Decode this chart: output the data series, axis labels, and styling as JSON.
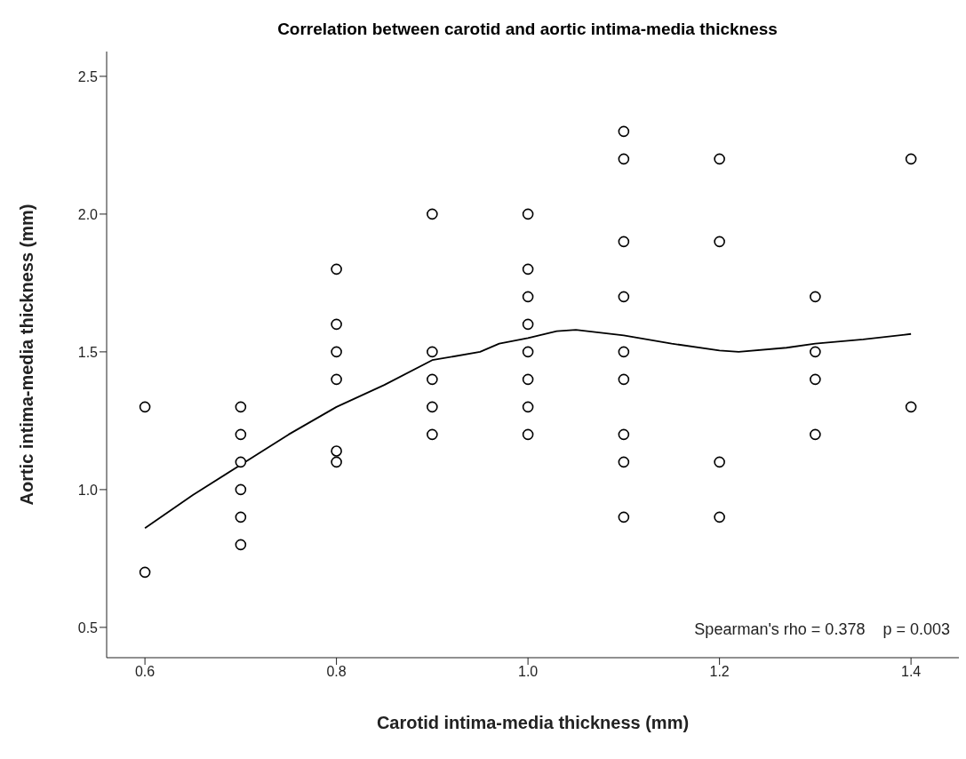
{
  "chart_data": {
    "type": "scatter",
    "title": "Correlation between carotid and aortic intima-media thickness",
    "xlabel": "Carotid intima-media thickness (mm)",
    "ylabel": "Aortic intima-media thickness (mm)",
    "xlim": [
      0.56,
      1.45
    ],
    "xticks": [
      {
        "value": 0.6,
        "label": "0.6"
      },
      {
        "value": 0.8,
        "label": "0.8"
      },
      {
        "value": 1.0,
        "label": "1.0"
      },
      {
        "value": 1.2,
        "label": "1.2"
      },
      {
        "value": 1.4,
        "label": "1.4"
      }
    ],
    "ylim": [
      0.39,
      2.59
    ],
    "yticks": [
      {
        "value": 0.5,
        "label": "0.5"
      },
      {
        "value": 1.0,
        "label": "1.0"
      },
      {
        "value": 1.5,
        "label": "1.5"
      },
      {
        "value": 2.0,
        "label": "2.0"
      },
      {
        "value": 2.5,
        "label": "2.5"
      }
    ],
    "marker": "circle",
    "series": [
      {
        "color": "#000000",
        "x": [
          0.6,
          0.6,
          0.7,
          0.7,
          0.7,
          0.7,
          0.7,
          0.7,
          0.8,
          0.8,
          0.8,
          0.8,
          0.8,
          0.8,
          0.9,
          0.9,
          0.9,
          0.9,
          0.9,
          1.0,
          1.0,
          1.0,
          1.0,
          1.0,
          1.0,
          1.0,
          1.0,
          1.1,
          1.1,
          1.1,
          1.1,
          1.1,
          1.1,
          1.1,
          1.1,
          1.1,
          1.2,
          1.2,
          1.2,
          1.2,
          1.3,
          1.3,
          1.3,
          1.3,
          1.4,
          1.4
        ],
        "values": [
          1.3,
          0.7,
          1.3,
          1.2,
          1.1,
          1.0,
          0.9,
          0.8,
          1.8,
          1.6,
          1.5,
          1.4,
          1.14,
          1.1,
          2.0,
          1.5,
          1.4,
          1.3,
          1.2,
          2.0,
          1.8,
          1.7,
          1.6,
          1.5,
          1.4,
          1.3,
          1.2,
          2.3,
          2.2,
          1.9,
          1.7,
          1.5,
          1.4,
          1.2,
          1.1,
          0.9,
          2.2,
          1.9,
          1.1,
          0.9,
          1.7,
          1.5,
          1.4,
          1.2,
          2.2,
          1.3
        ]
      },
      {
        "type": "line",
        "color": "#000000",
        "line_style": "solid",
        "marker": "none",
        "x": [
          0.6,
          0.65,
          0.7,
          0.75,
          0.8,
          0.85,
          0.9,
          0.95,
          0.97,
          1.0,
          1.03,
          1.05,
          1.1,
          1.15,
          1.2,
          1.22,
          1.27,
          1.3,
          1.35,
          1.4
        ],
        "values": [
          0.86,
          0.98,
          1.09,
          1.2,
          1.3,
          1.38,
          1.47,
          1.5,
          1.53,
          1.55,
          1.575,
          1.58,
          1.56,
          1.53,
          1.505,
          1.5,
          1.515,
          1.53,
          1.545,
          1.565
        ]
      }
    ],
    "annotations": [
      "Spearman's rho = 0.378    p = 0.003"
    ]
  }
}
